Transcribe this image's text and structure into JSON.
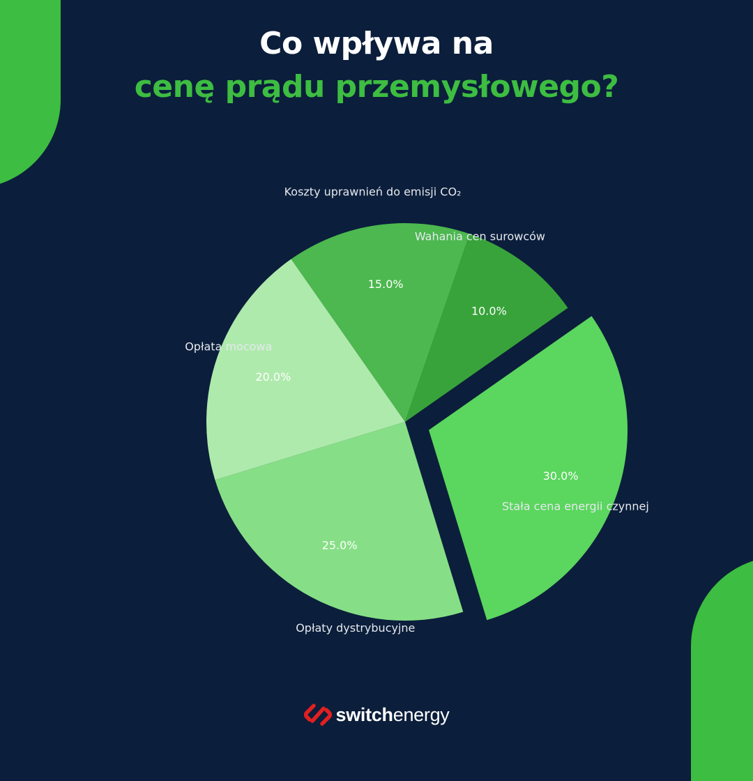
{
  "title": {
    "line1": "Co wpływa na",
    "line2": "cenę prądu przemysłowego?"
  },
  "colors": {
    "background": "#0b1e3b",
    "accent_green": "#3dbd41",
    "logo_red": "#e02020"
  },
  "chart_data": {
    "type": "pie",
    "slices": [
      {
        "label": "Koszty uprawnień do emisji CO₂",
        "value": 15.0,
        "value_label": "15.0%",
        "color": "#4cb84f",
        "exploded": false
      },
      {
        "label": "Opłata mocowa",
        "value": 20.0,
        "value_label": "20.0%",
        "color": "#aeeaac",
        "exploded": false
      },
      {
        "label": "Opłaty dystrybucyjne",
        "value": 25.0,
        "value_label": "25.0%",
        "color": "#86df86",
        "exploded": false
      },
      {
        "label": "Stała cena energii czynnej",
        "value": 30.0,
        "value_label": "30.0%",
        "color": "#5bd65e",
        "exploded": true
      },
      {
        "label": "Wahania cen surowców",
        "value": 10.0,
        "value_label": "10.0%",
        "color": "#38a33a",
        "exploded": false
      }
    ]
  },
  "brand": {
    "name_bold": "switch",
    "name_regular": "energy",
    "icon": "switch-logo-icon"
  }
}
